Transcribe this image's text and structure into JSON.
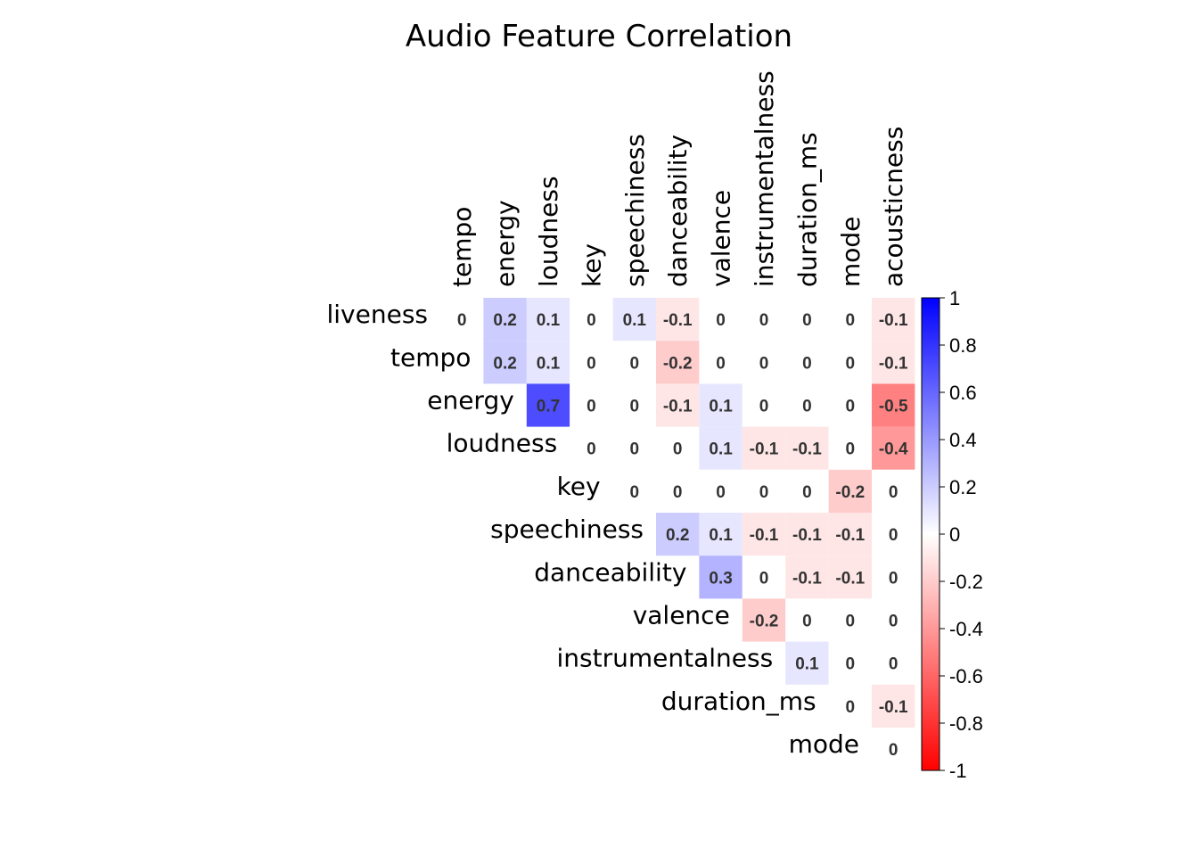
{
  "chart_data": {
    "type": "heatmap",
    "title": "Audio Feature Correlation",
    "rows": [
      "liveness",
      "tempo",
      "energy",
      "loudness",
      "key",
      "speechiness",
      "danceability",
      "valence",
      "instrumentalness",
      "duration_ms",
      "mode"
    ],
    "columns": [
      "tempo",
      "energy",
      "loudness",
      "key",
      "speechiness",
      "danceability",
      "valence",
      "instrumentalness",
      "duration_ms",
      "mode",
      "acousticness"
    ],
    "layout": "upper-triangle",
    "values": [
      [
        0,
        0.2,
        0.1,
        0,
        0.1,
        -0.1,
        0,
        0,
        0,
        0,
        -0.1
      ],
      [
        null,
        0.2,
        0.1,
        0,
        0,
        -0.2,
        0,
        0,
        0,
        0,
        -0.1
      ],
      [
        null,
        null,
        0.7,
        0,
        0,
        -0.1,
        0.1,
        0,
        0,
        0,
        -0.5
      ],
      [
        null,
        null,
        null,
        0,
        0,
        0,
        0.1,
        -0.1,
        -0.1,
        0,
        -0.4
      ],
      [
        null,
        null,
        null,
        null,
        0,
        0,
        0,
        0,
        0,
        -0.2,
        0
      ],
      [
        null,
        null,
        null,
        null,
        null,
        0.2,
        0.1,
        -0.1,
        -0.1,
        -0.1,
        0
      ],
      [
        null,
        null,
        null,
        null,
        null,
        null,
        0.3,
        0,
        -0.1,
        -0.1,
        0
      ],
      [
        null,
        null,
        null,
        null,
        null,
        null,
        null,
        -0.2,
        0,
        0,
        0
      ],
      [
        null,
        null,
        null,
        null,
        null,
        null,
        null,
        null,
        0.1,
        0,
        0
      ],
      [
        null,
        null,
        null,
        null,
        null,
        null,
        null,
        null,
        null,
        0,
        -0.1
      ],
      [
        null,
        null,
        null,
        null,
        null,
        null,
        null,
        null,
        null,
        null,
        0
      ]
    ],
    "colorscale": {
      "min": -1,
      "max": 1,
      "low_color": "#FF0000",
      "mid_color": "#FFFFFF",
      "high_color": "#0000FF",
      "ticks": [
        1,
        0.8,
        0.6,
        0.4,
        0.2,
        0,
        -0.2,
        -0.4,
        -0.6,
        -0.8,
        -1
      ]
    }
  }
}
